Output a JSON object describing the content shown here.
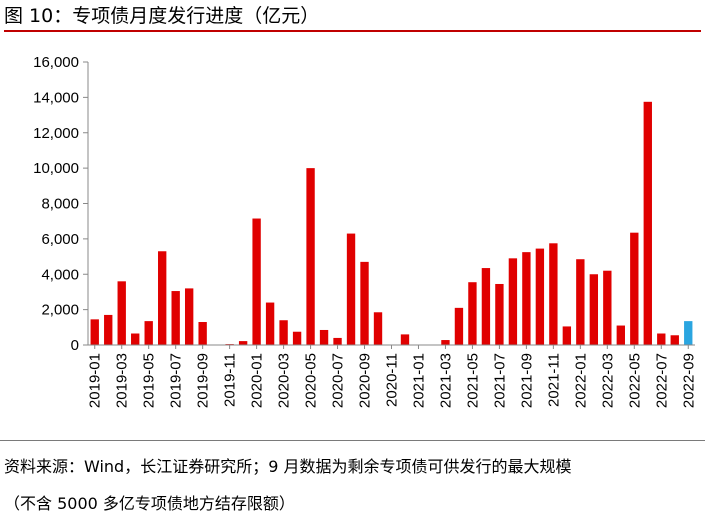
{
  "title": "图 10：专项债月度发行进度（亿元）",
  "chart_data": {
    "type": "bar",
    "title": "图 10：专项债月度发行进度（亿元）",
    "xlabel": "",
    "ylabel": "",
    "ylim": [
      0,
      16000
    ],
    "yticks": [
      0,
      2000,
      4000,
      6000,
      8000,
      10000,
      12000,
      14000,
      16000
    ],
    "ytick_labels": [
      "0",
      "2,000",
      "4,000",
      "6,000",
      "8,000",
      "10,000",
      "12,000",
      "14,000",
      "16,000"
    ],
    "categories": [
      "2019-01",
      "2019-02",
      "2019-03",
      "2019-04",
      "2019-05",
      "2019-06",
      "2019-07",
      "2019-08",
      "2019-09",
      "2019-10",
      "2019-11",
      "2019-12",
      "2020-01",
      "2020-02",
      "2020-03",
      "2020-04",
      "2020-05",
      "2020-06",
      "2020-07",
      "2020-08",
      "2020-09",
      "2020-10",
      "2020-11",
      "2020-12",
      "2021-01",
      "2021-02",
      "2021-03",
      "2021-04",
      "2021-05",
      "2021-06",
      "2021-07",
      "2021-08",
      "2021-09",
      "2021-10",
      "2021-11",
      "2021-12",
      "2022-01",
      "2022-02",
      "2022-03",
      "2022-04",
      "2022-05",
      "2022-06",
      "2022-07",
      "2022-08",
      "2022-09"
    ],
    "xtick_labels": [
      "2019-01",
      "2019-03",
      "2019-05",
      "2019-07",
      "2019-09",
      "2019-11",
      "2020-01",
      "2020-03",
      "2020-05",
      "2020-07",
      "2020-09",
      "2020-11",
      "2021-01",
      "2021-03",
      "2021-05",
      "2021-07",
      "2021-09",
      "2021-11",
      "2022-01",
      "2022-03",
      "2022-05",
      "2022-07",
      "2022-09"
    ],
    "values": [
      1450,
      1700,
      3600,
      650,
      1350,
      5300,
      3050,
      3200,
      1300,
      0,
      50,
      220,
      7150,
      2400,
      1400,
      750,
      10000,
      850,
      400,
      6300,
      4700,
      1850,
      0,
      600,
      0,
      0,
      280,
      2100,
      3550,
      4350,
      3450,
      4900,
      5250,
      5450,
      5750,
      1050,
      4850,
      4000,
      4200,
      1100,
      6350,
      13750,
      650,
      550,
      1350
    ],
    "colors": {
      "issued": "#e00000",
      "remaining": "#2aa5e0",
      "axis": "#888888"
    },
    "highlight_index": 44
  },
  "source_line1": "资料来源：Wind，长江证券研究所；9 月数据为剩余专项债可供发行的最大规模",
  "source_line2": "（不含 5000 多亿专项债地方结存限额）"
}
